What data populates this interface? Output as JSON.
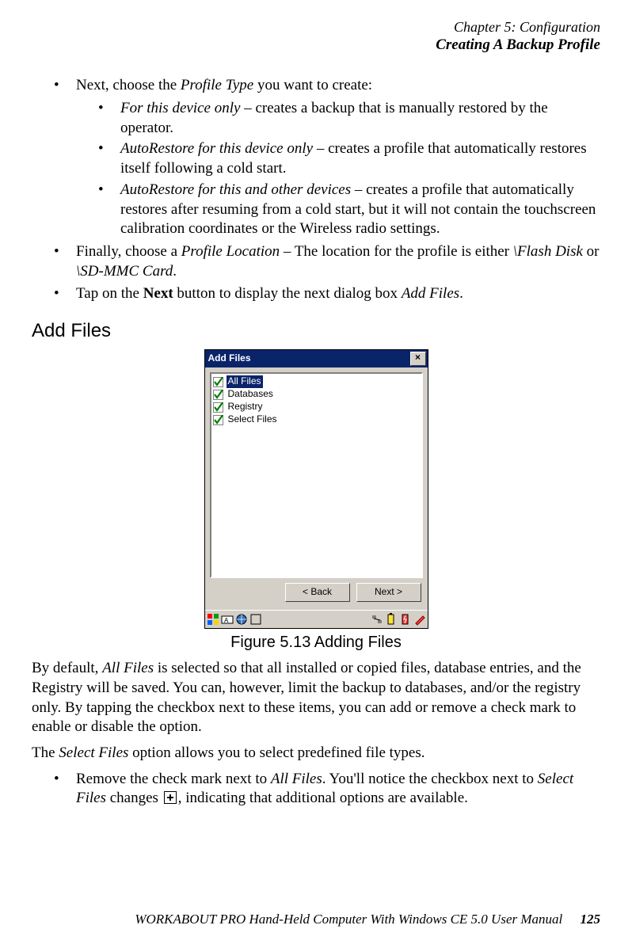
{
  "header": {
    "chapter": "Chapter 5: Configuration",
    "section": "Creating A Backup Profile"
  },
  "bullets_top": {
    "b1_pre": "Next, choose the ",
    "b1_em": "Profile Type",
    "b1_post": " you want to create:",
    "s1_em": "For this device only",
    "s1_post": " – creates a backup that is manually restored by the operator.",
    "s2_em": "AutoRestore for this device only",
    "s2_post": " – creates a profile that automatically restores itself following a cold start.",
    "s3_em": "AutoRestore for this and other devices",
    "s3_post": " – creates a profile that automatically restores after resuming from a cold start, but it will not contain the touchscreen calibration coordinates or the Wireless radio settings.",
    "b2_pre": "Finally, choose a ",
    "b2_em": "Profile Location",
    "b2_mid": " – The location for the profile is either ",
    "b2_em2": "\\Flash Disk",
    "b2_or": " or ",
    "b2_em3": "\\SD-MMC Card",
    "b2_end": ".",
    "b3_pre": "Tap on the ",
    "b3_bold": "Next",
    "b3_mid": " button to display the next dialog box ",
    "b3_em": "Add Files",
    "b3_end": "."
  },
  "subhead": "Add Files",
  "window": {
    "title": "Add Files",
    "items": [
      {
        "label": "All Files",
        "checked": true,
        "selected": true
      },
      {
        "label": "Databases",
        "checked": true,
        "selected": false
      },
      {
        "label": "Registry",
        "checked": true,
        "selected": false
      },
      {
        "label": "Select Files",
        "checked": true,
        "selected": false
      }
    ],
    "back": "< Back",
    "next": "Next >"
  },
  "figure_caption": "Figure 5.13 Adding Files",
  "para1_pre": "By default, ",
  "para1_em": "All Files",
  "para1_post": " is selected so that all installed or copied files, database entries, and the Registry will be saved. You can, however, limit the backup to databases, and/or the registry only. By tapping the checkbox next to these items, you can add or remove a check mark to enable or disable the option.",
  "para2_pre": "The ",
  "para2_em": "Select Files",
  "para2_post": " option allows you to select predefined file types.",
  "bullet_bottom_pre": "Remove the check mark next to ",
  "bullet_bottom_em1": "All Files",
  "bullet_bottom_mid": ". You'll notice the checkbox next to ",
  "bullet_bottom_em2": "Select Files",
  "bullet_bottom_mid2": " changes ",
  "bullet_bottom_end": ", indicating that additional options are available.",
  "footer_text": "WORKABOUT PRO Hand-Held Computer With Windows CE 5.0 User Manual",
  "footer_page": "125",
  "colors": {
    "titlebar": "#0a246a",
    "win_bg": "#d4d0c8"
  }
}
